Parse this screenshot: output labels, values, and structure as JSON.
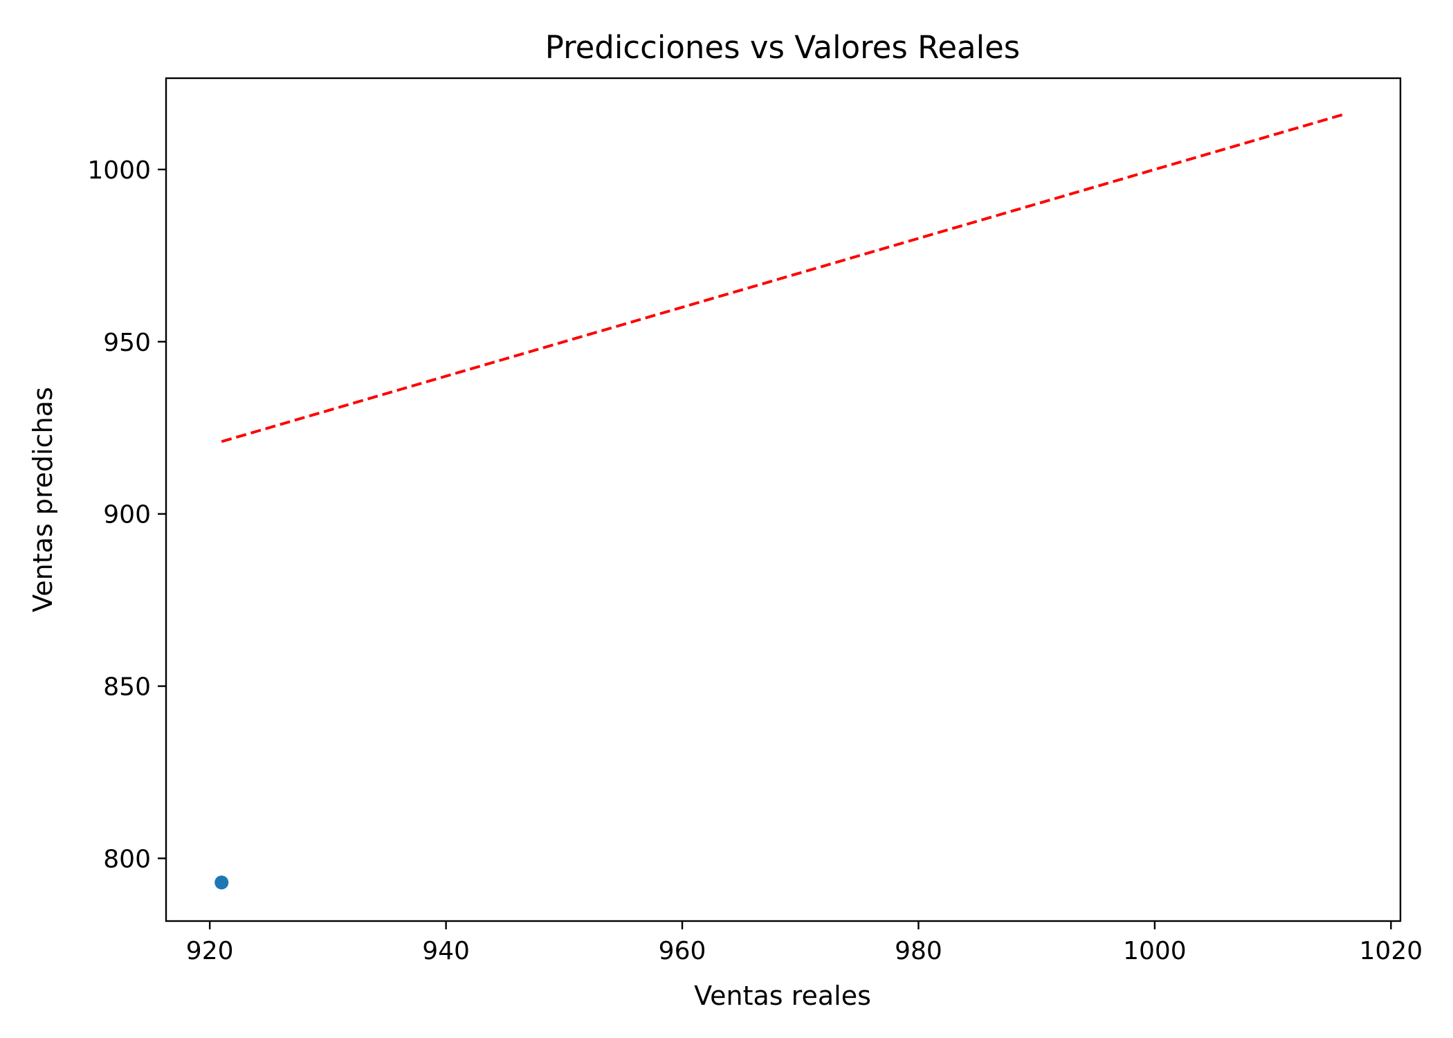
{
  "chart_data": {
    "type": "scatter",
    "title": "Predicciones vs Valores Reales",
    "xlabel": "Ventas reales",
    "ylabel": "Ventas predichas",
    "xlim": [
      916.3,
      1020.8
    ],
    "ylim": [
      781.8,
      1026.5
    ],
    "xticks": [
      920,
      940,
      960,
      980,
      1000,
      1020
    ],
    "yticks": [
      800,
      850,
      900,
      950,
      1000
    ],
    "grid": false,
    "series": [
      {
        "kind": "scatter",
        "color": "#1f77b4",
        "points": [
          {
            "x": 921,
            "y": 793
          }
        ]
      },
      {
        "kind": "line",
        "style": "dashed",
        "color": "#ff0000",
        "points": [
          {
            "x": 921,
            "y": 921
          },
          {
            "x": 1016,
            "y": 1016
          }
        ]
      }
    ]
  }
}
